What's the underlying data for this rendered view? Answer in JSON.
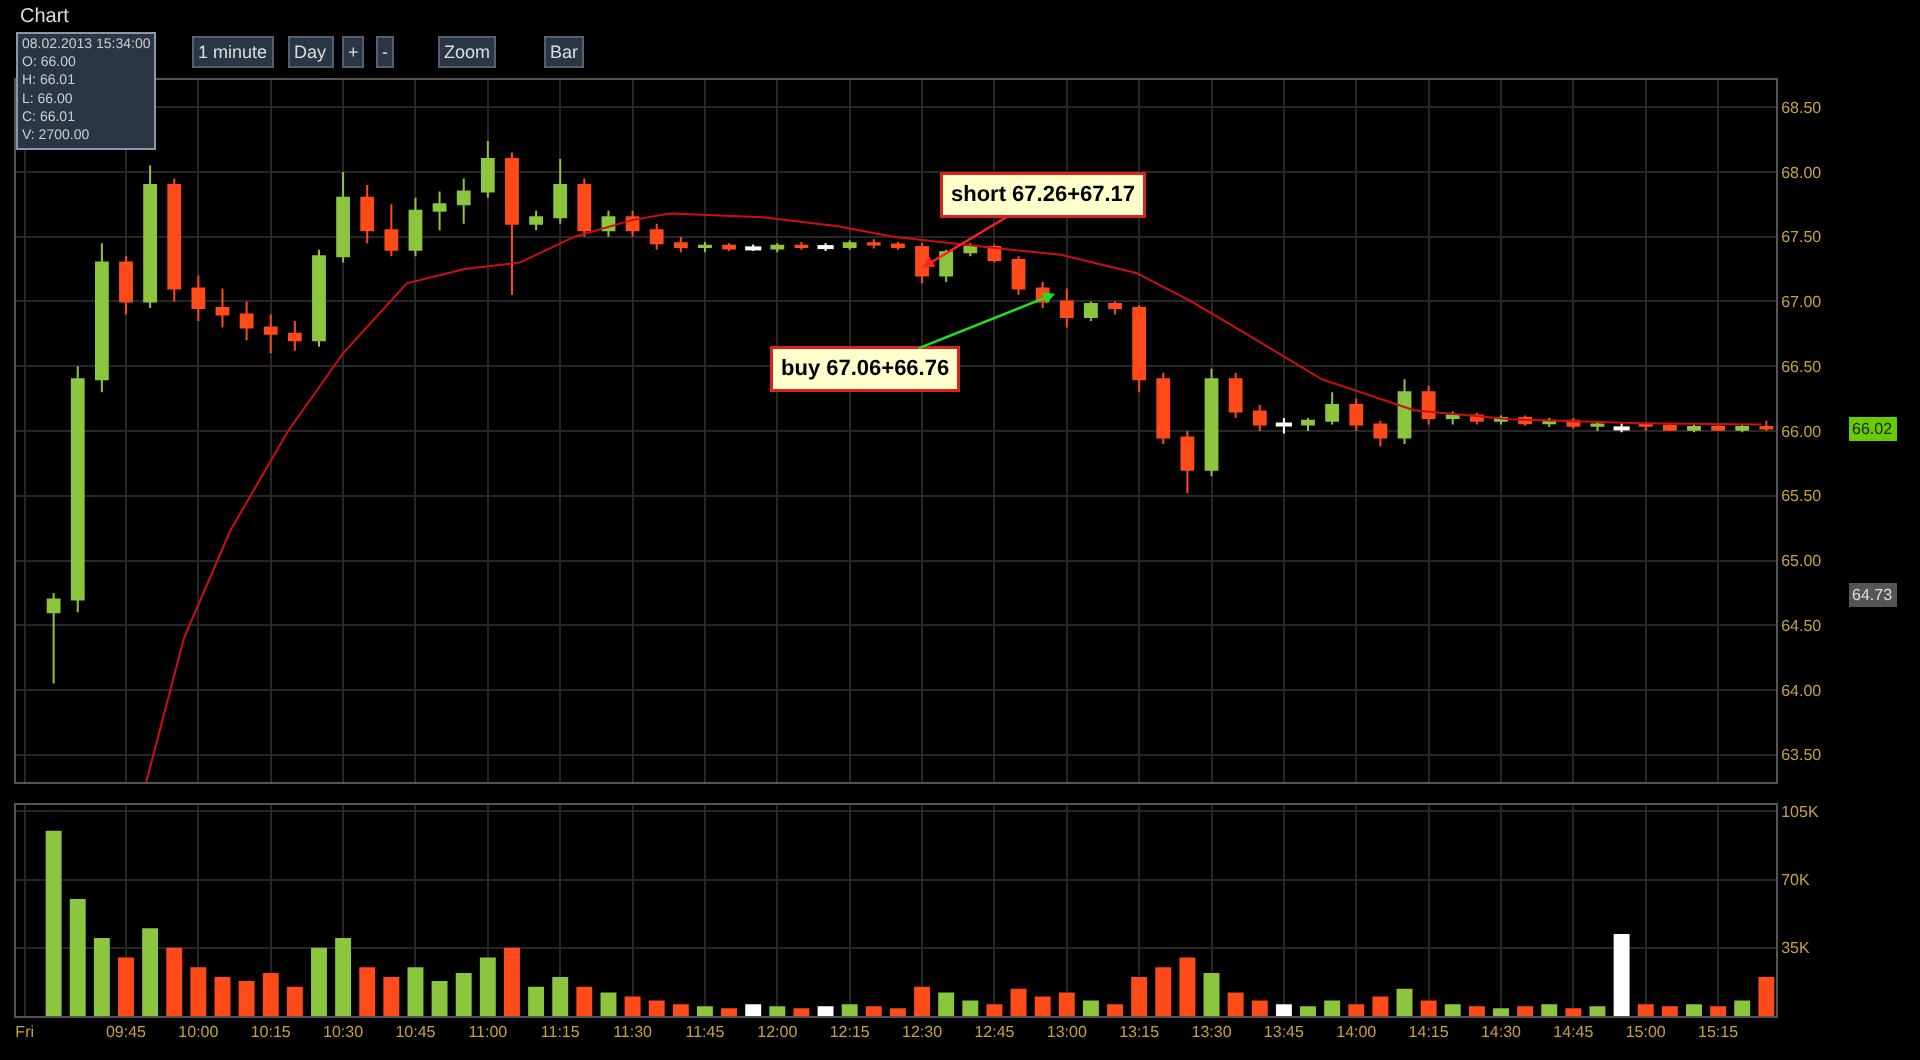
{
  "chart_data": [
    {
      "type": "candlestick",
      "title": "Chart",
      "grid": true,
      "tick_labels": "y",
      "x": [
        9.5,
        9.5833,
        9.6667,
        9.75,
        9.8333,
        9.9167,
        10,
        10.0833,
        10.1667,
        10.25,
        10.3333,
        10.4167,
        10.5,
        10.5833,
        10.6667,
        10.75,
        10.8333,
        10.9167,
        11,
        11.0833,
        11.1667,
        11.25,
        11.3333,
        11.4167,
        11.5,
        11.5833,
        11.6667,
        11.75,
        11.8333,
        11.9167,
        12,
        12.0833,
        12.1667,
        12.25,
        12.3333,
        12.4167,
        12.5,
        12.5833,
        12.6667,
        12.75,
        12.8333,
        12.9167,
        13,
        13.0833,
        13.1667,
        13.25,
        13.3333,
        13.4167,
        13.5,
        13.5833,
        13.6667,
        13.75,
        13.8333,
        13.9167,
        14,
        14.0833,
        14.1667,
        14.25,
        14.3333,
        14.4167,
        14.5,
        14.5833,
        14.6667,
        14.75,
        14.8333,
        14.9167,
        15,
        15.0833,
        15.1667,
        15.25,
        15.3333,
        15.4167
      ],
      "series": [
        {
          "type": "candlestick",
          "ohlc": [
            [
              64.6,
              64.75,
              64.05,
              64.7
            ],
            [
              64.7,
              66.5,
              64.6,
              66.4
            ],
            [
              66.4,
              67.45,
              66.3,
              67.3
            ],
            [
              67.3,
              67.35,
              66.9,
              67.0
            ],
            [
              67.0,
              68.05,
              66.95,
              67.9
            ],
            [
              67.9,
              67.95,
              67.0,
              67.1
            ],
            [
              67.1,
              67.2,
              66.85,
              66.95
            ],
            [
              66.95,
              67.1,
              66.8,
              66.9
            ],
            [
              66.9,
              67.0,
              66.7,
              66.8
            ],
            [
              66.8,
              66.9,
              66.6,
              66.75
            ],
            [
              66.75,
              66.85,
              66.62,
              66.7
            ],
            [
              66.7,
              67.4,
              66.65,
              67.35
            ],
            [
              67.35,
              68.0,
              67.3,
              67.8
            ],
            [
              67.8,
              67.9,
              67.45,
              67.55
            ],
            [
              67.55,
              67.75,
              67.35,
              67.4
            ],
            [
              67.4,
              67.8,
              67.35,
              67.7
            ],
            [
              67.7,
              67.85,
              67.55,
              67.75
            ],
            [
              67.75,
              67.95,
              67.6,
              67.85
            ],
            [
              67.85,
              68.24,
              67.8,
              68.1
            ],
            [
              68.1,
              68.15,
              67.05,
              67.6
            ],
            [
              67.6,
              67.7,
              67.55,
              67.65
            ],
            [
              67.65,
              68.1,
              67.6,
              67.9
            ],
            [
              67.9,
              67.95,
              67.5,
              67.55
            ],
            [
              67.55,
              67.7,
              67.5,
              67.65
            ],
            [
              67.65,
              67.7,
              67.5,
              67.55
            ],
            [
              67.55,
              67.6,
              67.4,
              67.45
            ],
            [
              67.45,
              67.5,
              67.38,
              67.42
            ],
            [
              67.42,
              67.46,
              67.38,
              67.43
            ],
            [
              67.43,
              67.45,
              67.39,
              67.41
            ],
            [
              67.41,
              67.44,
              67.39,
              67.41
            ],
            [
              67.41,
              67.45,
              67.38,
              67.43
            ],
            [
              67.43,
              67.46,
              67.4,
              67.42
            ],
            [
              67.42,
              67.45,
              67.39,
              67.42
            ],
            [
              67.42,
              67.47,
              67.4,
              67.45
            ],
            [
              67.45,
              67.48,
              67.41,
              67.44
            ],
            [
              67.44,
              67.46,
              67.4,
              67.42
            ],
            [
              67.42,
              67.45,
              67.14,
              67.2
            ],
            [
              67.2,
              67.4,
              67.15,
              67.38
            ],
            [
              67.38,
              67.45,
              67.35,
              67.42
            ],
            [
              67.42,
              67.44,
              67.3,
              67.32
            ],
            [
              67.32,
              67.35,
              67.05,
              67.1
            ],
            [
              67.1,
              67.15,
              66.95,
              67.0
            ],
            [
              67.0,
              67.1,
              66.8,
              66.88
            ],
            [
              66.88,
              67.0,
              66.85,
              66.98
            ],
            [
              66.98,
              67.0,
              66.9,
              66.95
            ],
            [
              66.95,
              66.97,
              66.3,
              66.4
            ],
            [
              66.4,
              66.45,
              65.9,
              65.95
            ],
            [
              65.95,
              66.0,
              65.52,
              65.7
            ],
            [
              65.7,
              66.48,
              65.65,
              66.4
            ],
            [
              66.4,
              66.45,
              66.1,
              66.15
            ],
            [
              66.15,
              66.2,
              66.0,
              66.05
            ],
            [
              66.05,
              66.1,
              65.98,
              66.05
            ],
            [
              66.05,
              66.1,
              66.0,
              66.08
            ],
            [
              66.08,
              66.3,
              66.05,
              66.2
            ],
            [
              66.2,
              66.25,
              66.0,
              66.05
            ],
            [
              66.05,
              66.08,
              65.88,
              65.95
            ],
            [
              65.95,
              66.4,
              65.9,
              66.3
            ],
            [
              66.3,
              66.35,
              66.05,
              66.1
            ],
            [
              66.1,
              66.15,
              66.05,
              66.12
            ],
            [
              66.12,
              66.14,
              66.05,
              66.08
            ],
            [
              66.08,
              66.12,
              66.05,
              66.1
            ],
            [
              66.1,
              66.12,
              66.04,
              66.06
            ],
            [
              66.06,
              66.1,
              66.03,
              66.08
            ],
            [
              66.08,
              66.1,
              66.02,
              66.04
            ],
            [
              66.04,
              66.08,
              66.0,
              66.05
            ],
            [
              66.02,
              66.06,
              65.99,
              66.02
            ],
            [
              66.05,
              66.07,
              66.0,
              66.04
            ],
            [
              66.04,
              66.06,
              66.0,
              66.01
            ],
            [
              66.01,
              66.05,
              65.99,
              66.03
            ],
            [
              66.03,
              66.06,
              66.0,
              66.01
            ],
            [
              66.01,
              66.05,
              65.99,
              66.03
            ],
            [
              66.03,
              66.08,
              66.0,
              66.02
            ]
          ],
          "colors": [
            "#8cc63e",
            "#8cc63e",
            "#8cc63e",
            "#ff4a1a",
            "#8cc63e",
            "#ff4a1a",
            "#ff4a1a",
            "#ff4a1a",
            "#ff4a1a",
            "#ff4a1a",
            "#ff4a1a",
            "#8cc63e",
            "#8cc63e",
            "#ff4a1a",
            "#ff4a1a",
            "#8cc63e",
            "#8cc63e",
            "#8cc63e",
            "#8cc63e",
            "#ff4a1a",
            "#8cc63e",
            "#8cc63e",
            "#ff4a1a",
            "#8cc63e",
            "#ff4a1a",
            "#ff4a1a",
            "#ff4a1a",
            "#8cc63e",
            "#ff4a1a",
            "#ffffff",
            "#8cc63e",
            "#ff4a1a",
            "#ffffff",
            "#8cc63e",
            "#ff4a1a",
            "#ff4a1a",
            "#ff4a1a",
            "#8cc63e",
            "#8cc63e",
            "#ff4a1a",
            "#ff4a1a",
            "#ff4a1a",
            "#ff4a1a",
            "#8cc63e",
            "#ff4a1a",
            "#ff4a1a",
            "#ff4a1a",
            "#ff4a1a",
            "#8cc63e",
            "#ff4a1a",
            "#ff4a1a",
            "#ffffff",
            "#8cc63e",
            "#8cc63e",
            "#ff4a1a",
            "#ff4a1a",
            "#8cc63e",
            "#ff4a1a",
            "#8cc63e",
            "#ff4a1a",
            "#8cc63e",
            "#ff4a1a",
            "#8cc63e",
            "#ff4a1a",
            "#8cc63e",
            "#ffffff",
            "#ff4a1a",
            "#ff4a1a",
            "#8cc63e",
            "#ff4a1a",
            "#8cc63e",
            "#ff4a1a"
          ]
        },
        {
          "type": "line",
          "color": "#cc1010",
          "x": [
            9.82,
            9.95,
            10.11,
            10.31,
            10.5,
            10.72,
            10.92,
            11.11,
            11.3,
            11.5,
            11.63,
            11.95,
            12.21,
            12.4,
            12.72,
            12.98,
            13.24,
            13.43,
            13.62,
            13.88,
            14.2,
            14.53,
            14.98,
            15.4
          ],
          "values": [
            63.29,
            64.4,
            65.23,
            66.0,
            66.6,
            67.14,
            67.25,
            67.3,
            67.5,
            67.63,
            67.68,
            67.65,
            67.58,
            67.5,
            67.42,
            67.36,
            67.22,
            67.0,
            66.75,
            66.4,
            66.16,
            66.09,
            66.06,
            66.05
          ]
        }
      ],
      "xlim": [
        9.37,
        15.45
      ],
      "xticks": [
        {
          "value": 9.4,
          "label": null
        },
        {
          "value": 9.75,
          "label": null
        },
        {
          "value": 10,
          "label": null
        },
        {
          "value": 10.25,
          "label": null
        },
        {
          "value": 10.5,
          "label": null
        },
        {
          "value": 10.75,
          "label": null
        },
        {
          "value": 11,
          "label": null
        },
        {
          "value": 11.25,
          "label": null
        },
        {
          "value": 11.5,
          "label": null
        },
        {
          "value": 11.75,
          "label": null
        },
        {
          "value": 12,
          "label": null
        },
        {
          "value": 12.25,
          "label": null
        },
        {
          "value": 12.5,
          "label": null
        },
        {
          "value": 12.75,
          "label": null
        },
        {
          "value": 13,
          "label": null
        },
        {
          "value": 13.25,
          "label": null
        },
        {
          "value": 13.5,
          "label": null
        },
        {
          "value": 13.75,
          "label": null
        },
        {
          "value": 14,
          "label": null
        },
        {
          "value": 14.25,
          "label": null
        },
        {
          "value": 14.5,
          "label": null
        },
        {
          "value": 14.75,
          "label": null
        },
        {
          "value": 15,
          "label": null
        },
        {
          "value": 15.25,
          "label": null
        }
      ],
      "ylim": [
        63.29,
        68.71
      ],
      "yticks": [
        {
          "value": 63.5,
          "label": "63.50"
        },
        {
          "value": 64,
          "label": "64.00"
        },
        {
          "value": 64.5,
          "label": "64.50"
        },
        {
          "value": 65,
          "label": "65.00"
        },
        {
          "value": 65.5,
          "label": "65.50"
        },
        {
          "value": 66,
          "label": "66.00"
        },
        {
          "value": 66.5,
          "label": "66.50"
        },
        {
          "value": 67,
          "label": "67.00"
        },
        {
          "value": 67.5,
          "label": "67.50"
        },
        {
          "value": 68,
          "label": "68.00"
        },
        {
          "value": 68.5,
          "label": "68.50"
        }
      ],
      "annotations": [
        "1 minute",
        "Day",
        "+",
        "-",
        "Zoom",
        "Bar",
        "08.02.2013 15:34:00",
        "O: 66.00",
        "H: 66.01",
        "L: 66.00",
        "C: 66.01",
        "V: 2700.00",
        {
          "text": "short 67.26+67.17",
          "x": 12.5,
          "y": 67.26
        },
        {
          "text": "buy 67.06+66.76",
          "x": 12.96,
          "y": 67.06
        },
        "66.02",
        "64.73"
      ]
    },
    {
      "type": "bar",
      "grid": true,
      "x": [
        9.5,
        9.5833,
        9.6667,
        9.75,
        9.8333,
        9.9167,
        10,
        10.0833,
        10.1667,
        10.25,
        10.3333,
        10.4167,
        10.5,
        10.5833,
        10.6667,
        10.75,
        10.8333,
        10.9167,
        11,
        11.0833,
        11.1667,
        11.25,
        11.3333,
        11.4167,
        11.5,
        11.5833,
        11.6667,
        11.75,
        11.8333,
        11.9167,
        12,
        12.0833,
        12.1667,
        12.25,
        12.3333,
        12.4167,
        12.5,
        12.5833,
        12.6667,
        12.75,
        12.8333,
        12.9167,
        13,
        13.0833,
        13.1667,
        13.25,
        13.3333,
        13.4167,
        13.5,
        13.5833,
        13.6667,
        13.75,
        13.8333,
        13.9167,
        14,
        14.0833,
        14.1667,
        14.25,
        14.3333,
        14.4167,
        14.5,
        14.5833,
        14.6667,
        14.75,
        14.8333,
        14.9167,
        15,
        15.0833,
        15.1667,
        15.25,
        15.3333,
        15.4167
      ],
      "values": [
        95000,
        60000,
        40000,
        30000,
        45000,
        35000,
        25000,
        20000,
        18000,
        22000,
        15000,
        35000,
        40000,
        25000,
        20000,
        25000,
        18000,
        22000,
        30000,
        35000,
        15000,
        20000,
        15000,
        12000,
        10000,
        8000,
        6000,
        5000,
        4000,
        6000,
        5000,
        4000,
        5000,
        6000,
        5000,
        4000,
        15000,
        12000,
        8000,
        6000,
        14000,
        10000,
        12000,
        8000,
        6000,
        20000,
        25000,
        30000,
        22000,
        12000,
        8000,
        6000,
        5000,
        8000,
        6000,
        10000,
        14000,
        8000,
        6000,
        5000,
        4000,
        5000,
        6000,
        4000,
        5000,
        42000,
        6000,
        5000,
        6000,
        5000,
        8000,
        20000
      ],
      "colors": [
        "#8cc63e",
        "#8cc63e",
        "#8cc63e",
        "#ff4a1a",
        "#8cc63e",
        "#ff4a1a",
        "#ff4a1a",
        "#ff4a1a",
        "#ff4a1a",
        "#ff4a1a",
        "#ff4a1a",
        "#8cc63e",
        "#8cc63e",
        "#ff4a1a",
        "#ff4a1a",
        "#8cc63e",
        "#8cc63e",
        "#8cc63e",
        "#8cc63e",
        "#ff4a1a",
        "#8cc63e",
        "#8cc63e",
        "#ff4a1a",
        "#8cc63e",
        "#ff4a1a",
        "#ff4a1a",
        "#ff4a1a",
        "#8cc63e",
        "#ff4a1a",
        "#ffffff",
        "#8cc63e",
        "#ff4a1a",
        "#ffffff",
        "#8cc63e",
        "#ff4a1a",
        "#ff4a1a",
        "#ff4a1a",
        "#8cc63e",
        "#8cc63e",
        "#ff4a1a",
        "#ff4a1a",
        "#ff4a1a",
        "#ff4a1a",
        "#8cc63e",
        "#ff4a1a",
        "#ff4a1a",
        "#ff4a1a",
        "#ff4a1a",
        "#8cc63e",
        "#ff4a1a",
        "#ff4a1a",
        "#ffffff",
        "#8cc63e",
        "#8cc63e",
        "#ff4a1a",
        "#ff4a1a",
        "#8cc63e",
        "#ff4a1a",
        "#8cc63e",
        "#ff4a1a",
        "#8cc63e",
        "#ff4a1a",
        "#8cc63e",
        "#ff4a1a",
        "#8cc63e",
        "#ffffff",
        "#ff4a1a",
        "#ff4a1a",
        "#8cc63e",
        "#ff4a1a",
        "#8cc63e",
        "#ff4a1a"
      ],
      "xlim": [
        9.37,
        15.45
      ],
      "xticks": [
        {
          "value": 9.4,
          "label": "Fri"
        },
        {
          "value": 9.75,
          "label": "09:45"
        },
        {
          "value": 10,
          "label": "10:00"
        },
        {
          "value": 10.25,
          "label": "10:15"
        },
        {
          "value": 10.5,
          "label": "10:30"
        },
        {
          "value": 10.75,
          "label": "10:45"
        },
        {
          "value": 11,
          "label": "11:00"
        },
        {
          "value": 11.25,
          "label": "11:15"
        },
        {
          "value": 11.5,
          "label": "11:30"
        },
        {
          "value": 11.75,
          "label": "11:45"
        },
        {
          "value": 12,
          "label": "12:00"
        },
        {
          "value": 12.25,
          "label": "12:15"
        },
        {
          "value": 12.5,
          "label": "12:30"
        },
        {
          "value": 12.75,
          "label": "12:45"
        },
        {
          "value": 13,
          "label": "13:00"
        },
        {
          "value": 13.25,
          "label": "13:15"
        },
        {
          "value": 13.5,
          "label": "13:30"
        },
        {
          "value": 13.75,
          "label": "13:45"
        },
        {
          "value": 14,
          "label": "14:00"
        },
        {
          "value": 14.25,
          "label": "14:15"
        },
        {
          "value": 14.5,
          "label": "14:30"
        },
        {
          "value": 14.75,
          "label": "14:45"
        },
        {
          "value": 15,
          "label": "15:00"
        },
        {
          "value": 15.25,
          "label": "15:15"
        }
      ],
      "ylim": [
        0,
        108000
      ],
      "yticks": [
        {
          "value": 35000,
          "label": "35K"
        },
        {
          "value": 70000,
          "label": "70K"
        },
        {
          "value": 105000,
          "label": "105K"
        }
      ]
    }
  ]
}
